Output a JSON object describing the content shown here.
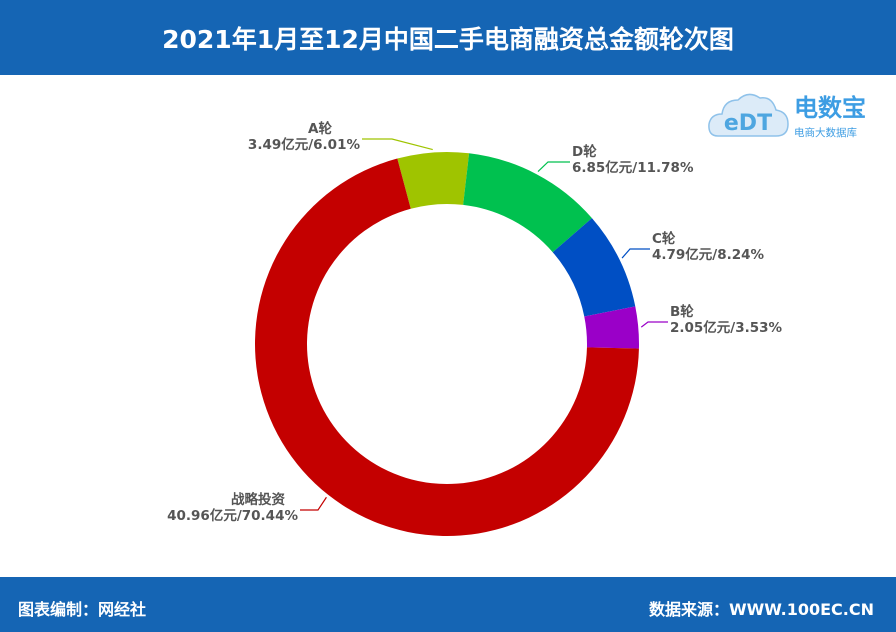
{
  "header": {
    "title": "2021年1月至12月中国二手电商融资总金额轮次图"
  },
  "footer": {
    "editor": "图表编制：网经社",
    "source": "数据来源：WWW.100EC.CN"
  },
  "logo": {
    "brand": "电数宝",
    "sub": "电商大数据库",
    "mark": "eDT"
  },
  "chart_data": {
    "type": "pie",
    "variant": "donut",
    "unit": "亿元",
    "slices": [
      {
        "name": "A轮",
        "value": 3.49,
        "percent": 6.01,
        "label_value": "3.49亿元/6.01%",
        "color": "#9fc400"
      },
      {
        "name": "D轮",
        "value": 6.85,
        "percent": 11.78,
        "label_value": "6.85亿元/11.78%",
        "color": "#00c14f"
      },
      {
        "name": "C轮",
        "value": 4.79,
        "percent": 8.24,
        "label_value": "4.79亿元/8.24%",
        "color": "#004fc4"
      },
      {
        "name": "B轮",
        "value": 2.05,
        "percent": 3.53,
        "label_value": "2.05亿元/3.53%",
        "color": "#9a00c8"
      },
      {
        "name": "战略投资",
        "value": 40.96,
        "percent": 70.44,
        "label_value": "40.96亿元/70.44%",
        "color": "#c40000"
      }
    ]
  }
}
